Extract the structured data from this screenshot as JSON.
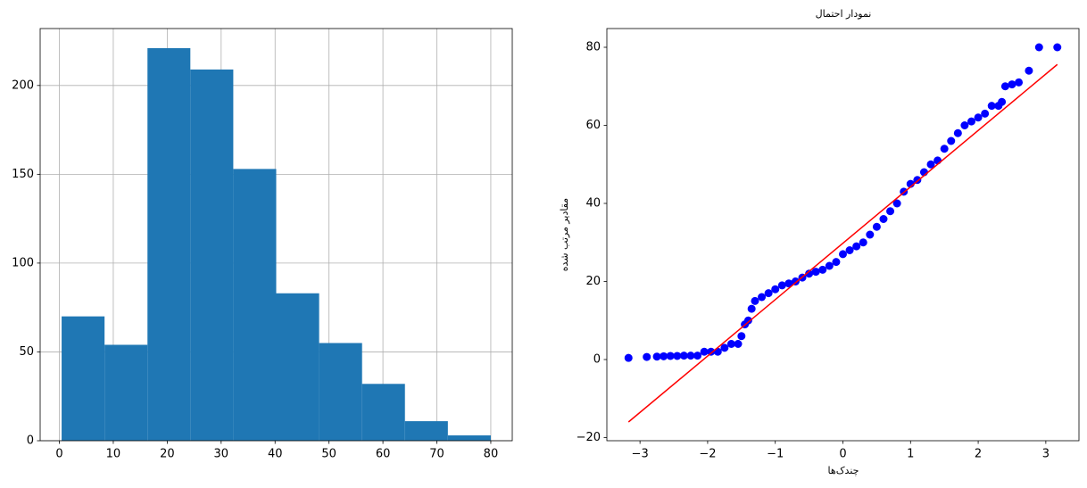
{
  "chart_data": [
    {
      "type": "histogram",
      "bins": [
        0.42,
        8.38,
        16.34,
        24.29,
        32.25,
        40.21,
        48.17,
        56.13,
        64.08,
        72.04,
        80
      ],
      "values": [
        70,
        54,
        221,
        209,
        153,
        83,
        55,
        32,
        11,
        3
      ],
      "color": "#1f77b4",
      "xlim": [
        -3.56,
        83.98
      ],
      "ylim": [
        0,
        232.05
      ],
      "xticks": [
        0,
        10,
        20,
        30,
        40,
        50,
        60,
        70,
        80
      ],
      "yticks": [
        0,
        50,
        100,
        150,
        200
      ],
      "grid": true
    },
    {
      "type": "scatter",
      "title": "نمودار احتمال",
      "x_label": "چندک‌ها",
      "y_label": "مقادیر مرتب شده",
      "xlim": [
        -3.49,
        3.49
      ],
      "ylim": [
        -20.8,
        84.8
      ],
      "xticks": [
        {
          "value": -3,
          "label": "−3"
        },
        {
          "value": -2,
          "label": "−2"
        },
        {
          "value": -1,
          "label": "−1"
        },
        0,
        1,
        2,
        3
      ],
      "yticks": [
        {
          "value": -20,
          "label": "−20"
        },
        0,
        20,
        40,
        60,
        80
      ],
      "grid": false,
      "series": [
        {
          "style": "markers",
          "color": "#0000ff",
          "x": [
            -3.17,
            -2.9,
            -2.75,
            -2.65,
            -2.55,
            -2.45,
            -2.35,
            -2.25,
            -2.15,
            -2.05,
            -1.95,
            -1.85,
            -1.75,
            -1.65,
            -1.55,
            -1.5,
            -1.45,
            -1.4,
            -1.35,
            -1.3,
            -1.2,
            -1.1,
            -1.0,
            -0.9,
            -0.8,
            -0.7,
            -0.6,
            -0.5,
            -0.4,
            -0.3,
            -0.2,
            -0.1,
            0,
            0.1,
            0.2,
            0.3,
            0.4,
            0.5,
            0.6,
            0.7,
            0.8,
            0.9,
            1.0,
            1.1,
            1.2,
            1.3,
            1.4,
            1.5,
            1.6,
            1.7,
            1.8,
            1.9,
            2.0,
            2.1,
            2.2,
            2.3,
            2.35,
            2.4,
            2.5,
            2.6,
            2.75,
            2.9,
            3.17
          ],
          "values": [
            0.42,
            0.67,
            0.75,
            0.83,
            0.92,
            0.92,
            1,
            1,
            1,
            2,
            2,
            2,
            3,
            4,
            4,
            6,
            9,
            10,
            13,
            15,
            16,
            17,
            18,
            19,
            19.5,
            20,
            21,
            22,
            22.5,
            23,
            24,
            25,
            27,
            28,
            29,
            30,
            32,
            34,
            36,
            38,
            40,
            43,
            45,
            46,
            48,
            50,
            51,
            54,
            56,
            58,
            60,
            61,
            62,
            63,
            65,
            65,
            66,
            70,
            70.5,
            71,
            74,
            80,
            80
          ]
        },
        {
          "style": "line",
          "color": "#ff0000",
          "x": [
            -3.17,
            3.17
          ],
          "values": [
            -16.0,
            75.6
          ]
        }
      ]
    }
  ]
}
